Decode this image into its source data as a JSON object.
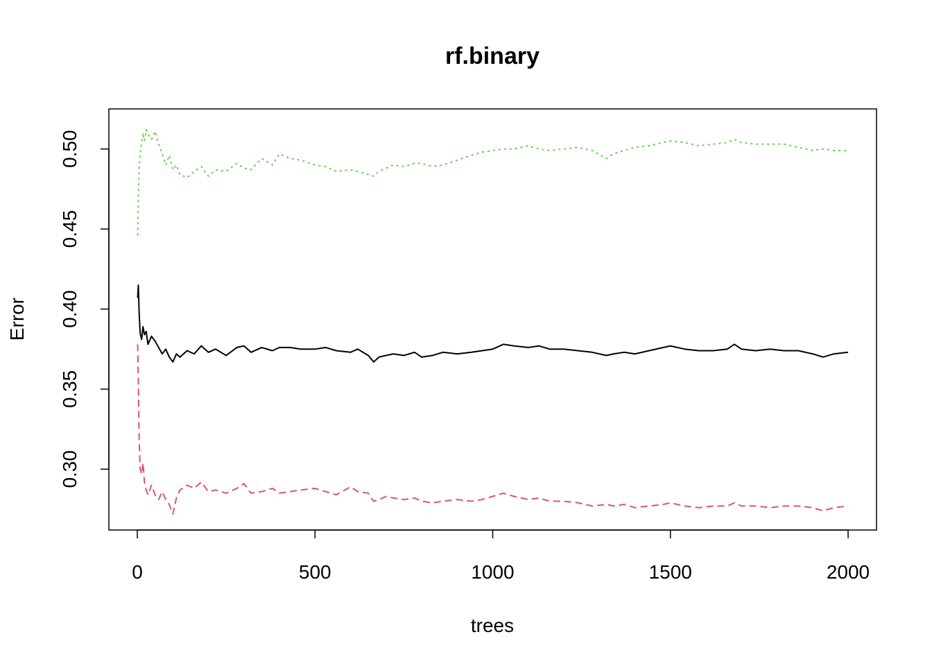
{
  "chart_data": {
    "type": "line",
    "title": "rf.binary",
    "xlabel": "trees",
    "ylabel": "Error",
    "xlim": [
      -80,
      2080
    ],
    "ylim": [
      0.262,
      0.525
    ],
    "x_ticks": [
      0,
      500,
      1000,
      1500,
      2000
    ],
    "x_tick_labels": [
      "0",
      "500",
      "1000",
      "1500",
      "2000"
    ],
    "y_ticks": [
      0.3,
      0.35,
      0.4,
      0.45,
      0.5
    ],
    "y_tick_labels": [
      "0.30",
      "0.35",
      "0.40",
      "0.45",
      "0.50"
    ],
    "grid": false,
    "legend": "none",
    "series": [
      {
        "color": "#000000",
        "dash": "solid",
        "x": [
          1,
          3,
          5,
          8,
          12,
          16,
          20,
          25,
          30,
          40,
          50,
          60,
          70,
          80,
          90,
          100,
          110,
          120,
          140,
          160,
          180,
          200,
          220,
          250,
          280,
          300,
          320,
          350,
          380,
          400,
          430,
          460,
          500,
          530,
          560,
          600,
          620,
          650,
          665,
          680,
          700,
          720,
          750,
          780,
          800,
          830,
          860,
          900,
          940,
          970,
          1000,
          1030,
          1060,
          1100,
          1130,
          1160,
          1200,
          1240,
          1280,
          1320,
          1340,
          1370,
          1400,
          1440,
          1480,
          1500,
          1540,
          1580,
          1620,
          1660,
          1680,
          1700,
          1740,
          1780,
          1820,
          1860,
          1900,
          1930,
          1960,
          2000
        ],
        "y": [
          0.407,
          0.415,
          0.398,
          0.385,
          0.381,
          0.389,
          0.384,
          0.386,
          0.378,
          0.383,
          0.38,
          0.376,
          0.372,
          0.375,
          0.37,
          0.367,
          0.372,
          0.37,
          0.374,
          0.372,
          0.377,
          0.373,
          0.375,
          0.371,
          0.376,
          0.377,
          0.373,
          0.376,
          0.374,
          0.376,
          0.376,
          0.375,
          0.375,
          0.376,
          0.374,
          0.373,
          0.375,
          0.371,
          0.367,
          0.37,
          0.371,
          0.372,
          0.371,
          0.373,
          0.37,
          0.371,
          0.373,
          0.372,
          0.373,
          0.374,
          0.375,
          0.378,
          0.377,
          0.376,
          0.377,
          0.375,
          0.375,
          0.374,
          0.373,
          0.371,
          0.372,
          0.373,
          0.372,
          0.374,
          0.376,
          0.377,
          0.375,
          0.374,
          0.374,
          0.375,
          0.378,
          0.375,
          0.374,
          0.375,
          0.374,
          0.374,
          0.372,
          0.37,
          0.372,
          0.373
        ]
      },
      {
        "color": "#df536b",
        "dash": "dashed",
        "x": [
          1,
          3,
          5,
          8,
          12,
          16,
          20,
          25,
          30,
          40,
          50,
          60,
          70,
          80,
          90,
          100,
          110,
          120,
          140,
          160,
          180,
          200,
          220,
          250,
          280,
          300,
          320,
          350,
          380,
          400,
          430,
          460,
          500,
          530,
          560,
          600,
          620,
          650,
          665,
          680,
          700,
          720,
          750,
          780,
          800,
          830,
          860,
          900,
          940,
          970,
          1000,
          1030,
          1060,
          1100,
          1130,
          1160,
          1200,
          1240,
          1280,
          1320,
          1340,
          1370,
          1400,
          1440,
          1480,
          1500,
          1540,
          1580,
          1620,
          1660,
          1680,
          1700,
          1740,
          1780,
          1820,
          1860,
          1900,
          1930,
          1960,
          2000
        ],
        "y": [
          0.378,
          0.355,
          0.32,
          0.3,
          0.297,
          0.304,
          0.292,
          0.287,
          0.284,
          0.29,
          0.284,
          0.281,
          0.286,
          0.281,
          0.278,
          0.272,
          0.282,
          0.287,
          0.29,
          0.288,
          0.292,
          0.286,
          0.287,
          0.285,
          0.288,
          0.291,
          0.285,
          0.286,
          0.288,
          0.285,
          0.286,
          0.287,
          0.288,
          0.286,
          0.284,
          0.289,
          0.286,
          0.285,
          0.28,
          0.281,
          0.283,
          0.282,
          0.281,
          0.282,
          0.28,
          0.279,
          0.28,
          0.281,
          0.28,
          0.281,
          0.283,
          0.285,
          0.283,
          0.281,
          0.282,
          0.28,
          0.28,
          0.279,
          0.277,
          0.278,
          0.277,
          0.278,
          0.276,
          0.277,
          0.278,
          0.279,
          0.277,
          0.276,
          0.277,
          0.277,
          0.279,
          0.277,
          0.277,
          0.276,
          0.277,
          0.277,
          0.276,
          0.274,
          0.276,
          0.277
        ]
      },
      {
        "color": "#61d04f",
        "dash": "dotted",
        "x": [
          1,
          3,
          5,
          8,
          12,
          16,
          20,
          25,
          30,
          40,
          50,
          60,
          70,
          80,
          90,
          100,
          110,
          120,
          140,
          160,
          180,
          200,
          220,
          250,
          280,
          300,
          320,
          350,
          380,
          400,
          430,
          460,
          500,
          530,
          560,
          600,
          620,
          650,
          665,
          680,
          700,
          720,
          750,
          780,
          800,
          830,
          860,
          900,
          940,
          970,
          1000,
          1030,
          1060,
          1100,
          1130,
          1160,
          1200,
          1240,
          1280,
          1320,
          1340,
          1370,
          1400,
          1440,
          1480,
          1500,
          1540,
          1580,
          1620,
          1660,
          1680,
          1700,
          1740,
          1780,
          1820,
          1860,
          1900,
          1930,
          1960,
          2000
        ],
        "y": [
          0.446,
          0.47,
          0.488,
          0.497,
          0.504,
          0.51,
          0.505,
          0.512,
          0.509,
          0.506,
          0.511,
          0.503,
          0.497,
          0.49,
          0.496,
          0.487,
          0.49,
          0.484,
          0.482,
          0.486,
          0.489,
          0.483,
          0.487,
          0.486,
          0.491,
          0.488,
          0.487,
          0.494,
          0.49,
          0.497,
          0.494,
          0.493,
          0.49,
          0.489,
          0.486,
          0.487,
          0.486,
          0.484,
          0.483,
          0.486,
          0.488,
          0.49,
          0.489,
          0.491,
          0.491,
          0.489,
          0.49,
          0.493,
          0.496,
          0.498,
          0.499,
          0.5,
          0.5,
          0.502,
          0.5,
          0.499,
          0.5,
          0.501,
          0.499,
          0.494,
          0.497,
          0.499,
          0.501,
          0.502,
          0.504,
          0.505,
          0.504,
          0.502,
          0.503,
          0.504,
          0.506,
          0.504,
          0.503,
          0.503,
          0.503,
          0.501,
          0.499,
          0.5,
          0.499,
          0.499
        ]
      }
    ]
  }
}
